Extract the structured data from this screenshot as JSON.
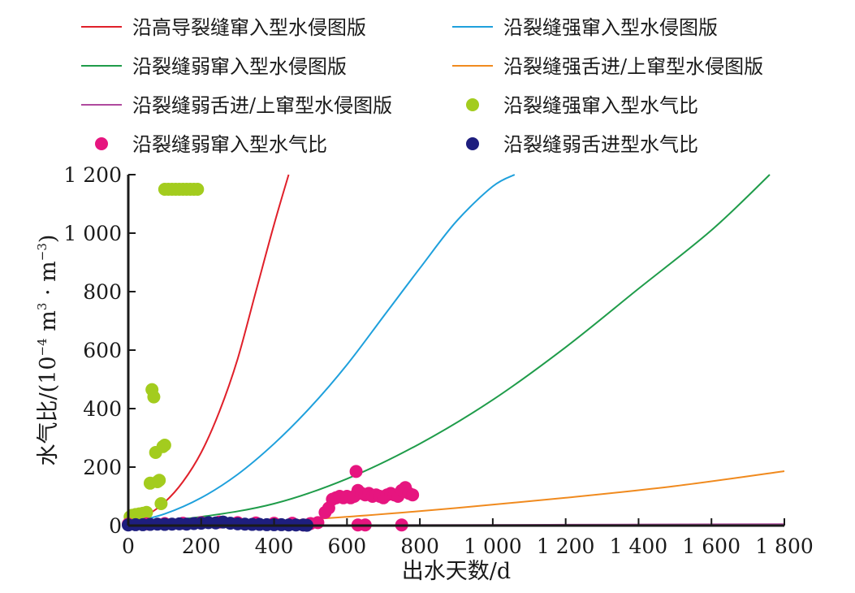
{
  "chart_data": {
    "type": "scatter",
    "xlabel": "出水天数/d",
    "ylabel_main": "水气比/(10",
    "ylabel_exp1": "−4",
    "ylabel_unit": " m",
    "ylabel_exp2": "3",
    "ylabel_sep": " · m",
    "ylabel_exp3": "−3",
    "ylabel_close": ")",
    "xlim": [
      0,
      1800
    ],
    "ylim": [
      0,
      1200
    ],
    "x_ticks": [
      0,
      200,
      400,
      600,
      800,
      1000,
      1200,
      1400,
      1600,
      1800
    ],
    "x_tick_labels": [
      "0",
      "200",
      "400",
      "600",
      "800",
      "1 000",
      "1 200",
      "1 400",
      "1 600",
      "1 800"
    ],
    "y_ticks": [
      0,
      200,
      400,
      600,
      800,
      1000,
      1200
    ],
    "y_tick_labels": [
      "0",
      "200",
      "400",
      "600",
      "800",
      "1 000",
      "1 200"
    ],
    "grid": false,
    "legend_position": "top",
    "lines": [
      {
        "name": "沿高导裂缝窜入型水侵图版",
        "color": "#e0202a",
        "points": [
          [
            0,
            10
          ],
          [
            50,
            35
          ],
          [
            100,
            80
          ],
          [
            150,
            150
          ],
          [
            200,
            250
          ],
          [
            250,
            390
          ],
          [
            300,
            570
          ],
          [
            350,
            800
          ],
          [
            400,
            1030
          ],
          [
            440,
            1200
          ]
        ]
      },
      {
        "name": "沿裂缝强窜入型水侵图版",
        "color": "#1ea0dc",
        "points": [
          [
            0,
            8
          ],
          [
            100,
            40
          ],
          [
            200,
            95
          ],
          [
            300,
            175
          ],
          [
            400,
            280
          ],
          [
            500,
            405
          ],
          [
            600,
            550
          ],
          [
            700,
            715
          ],
          [
            800,
            880
          ],
          [
            900,
            1040
          ],
          [
            1000,
            1160
          ],
          [
            1060,
            1200
          ]
        ]
      },
      {
        "name": "沿裂缝弱窜入型水侵图版",
        "color": "#1f9c4a",
        "points": [
          [
            0,
            5
          ],
          [
            200,
            30
          ],
          [
            400,
            75
          ],
          [
            600,
            160
          ],
          [
            800,
            280
          ],
          [
            1000,
            430
          ],
          [
            1200,
            610
          ],
          [
            1400,
            810
          ],
          [
            1600,
            1010
          ],
          [
            1760,
            1200
          ]
        ]
      },
      {
        "name": "沿裂缝强舌进/上窜型水侵图版",
        "color": "#f08a1e",
        "points": [
          [
            0,
            2
          ],
          [
            300,
            8
          ],
          [
            600,
            30
          ],
          [
            900,
            60
          ],
          [
            1200,
            95
          ],
          [
            1500,
            135
          ],
          [
            1800,
            186
          ]
        ]
      },
      {
        "name": "沿裂缝弱舌进/上窜型水侵图版",
        "color": "#b04a9e",
        "points": [
          [
            0,
            0.5
          ],
          [
            600,
            1
          ],
          [
            1200,
            3
          ],
          [
            1800,
            5
          ]
        ]
      }
    ],
    "scatter": [
      {
        "name": "沿裂缝强窜入型水气比",
        "color": "#a3cc1e",
        "points": [
          [
            5,
            30
          ],
          [
            10,
            35
          ],
          [
            20,
            38
          ],
          [
            30,
            40
          ],
          [
            40,
            42
          ],
          [
            50,
            45
          ],
          [
            60,
            145
          ],
          [
            65,
            465
          ],
          [
            70,
            440
          ],
          [
            75,
            250
          ],
          [
            80,
            150
          ],
          [
            85,
            155
          ],
          [
            90,
            75
          ],
          [
            95,
            270
          ],
          [
            100,
            275
          ],
          [
            100,
            1150
          ],
          [
            110,
            1150
          ],
          [
            120,
            1150
          ],
          [
            130,
            1150
          ],
          [
            140,
            1150
          ],
          [
            150,
            1150
          ],
          [
            160,
            1150
          ],
          [
            170,
            1150
          ],
          [
            180,
            1150
          ],
          [
            190,
            1150
          ]
        ]
      },
      {
        "name": "沿裂缝弱窜入型水气比",
        "color": "#e6157f",
        "points": [
          [
            0,
            5
          ],
          [
            50,
            6
          ],
          [
            100,
            7
          ],
          [
            150,
            8
          ],
          [
            200,
            10
          ],
          [
            250,
            12
          ],
          [
            300,
            10
          ],
          [
            350,
            9
          ],
          [
            400,
            8
          ],
          [
            450,
            8
          ],
          [
            480,
            2
          ],
          [
            500,
            7
          ],
          [
            520,
            10
          ],
          [
            540,
            45
          ],
          [
            550,
            60
          ],
          [
            560,
            90
          ],
          [
            570,
            95
          ],
          [
            580,
            100
          ],
          [
            590,
            95
          ],
          [
            600,
            100
          ],
          [
            610,
            95
          ],
          [
            620,
            100
          ],
          [
            625,
            185
          ],
          [
            630,
            120
          ],
          [
            640,
            110
          ],
          [
            650,
            105
          ],
          [
            660,
            110
          ],
          [
            670,
            100
          ],
          [
            680,
            105
          ],
          [
            690,
            100
          ],
          [
            700,
            95
          ],
          [
            710,
            105
          ],
          [
            720,
            110
          ],
          [
            730,
            105
          ],
          [
            740,
            100
          ],
          [
            750,
            120
          ],
          [
            760,
            130
          ],
          [
            770,
            110
          ],
          [
            780,
            105
          ],
          [
            630,
            2
          ],
          [
            650,
            2
          ],
          [
            750,
            2
          ]
        ]
      },
      {
        "name": "沿裂缝弱舌进型水气比",
        "color": "#1e1e7e",
        "points": [
          [
            0,
            2
          ],
          [
            20,
            3
          ],
          [
            40,
            3
          ],
          [
            60,
            4
          ],
          [
            80,
            5
          ],
          [
            100,
            4
          ],
          [
            120,
            5
          ],
          [
            140,
            6
          ],
          [
            160,
            5
          ],
          [
            180,
            7
          ],
          [
            200,
            8
          ],
          [
            220,
            10
          ],
          [
            240,
            9
          ],
          [
            260,
            12
          ],
          [
            280,
            8
          ],
          [
            300,
            6
          ],
          [
            320,
            5
          ],
          [
            340,
            4
          ],
          [
            360,
            4
          ],
          [
            380,
            3
          ],
          [
            400,
            3
          ],
          [
            420,
            3
          ],
          [
            440,
            2
          ],
          [
            460,
            2
          ],
          [
            480,
            2
          ],
          [
            490,
            1
          ]
        ]
      }
    ]
  },
  "colors": {
    "axis": "#1a1a1a",
    "background": "#ffffff"
  }
}
